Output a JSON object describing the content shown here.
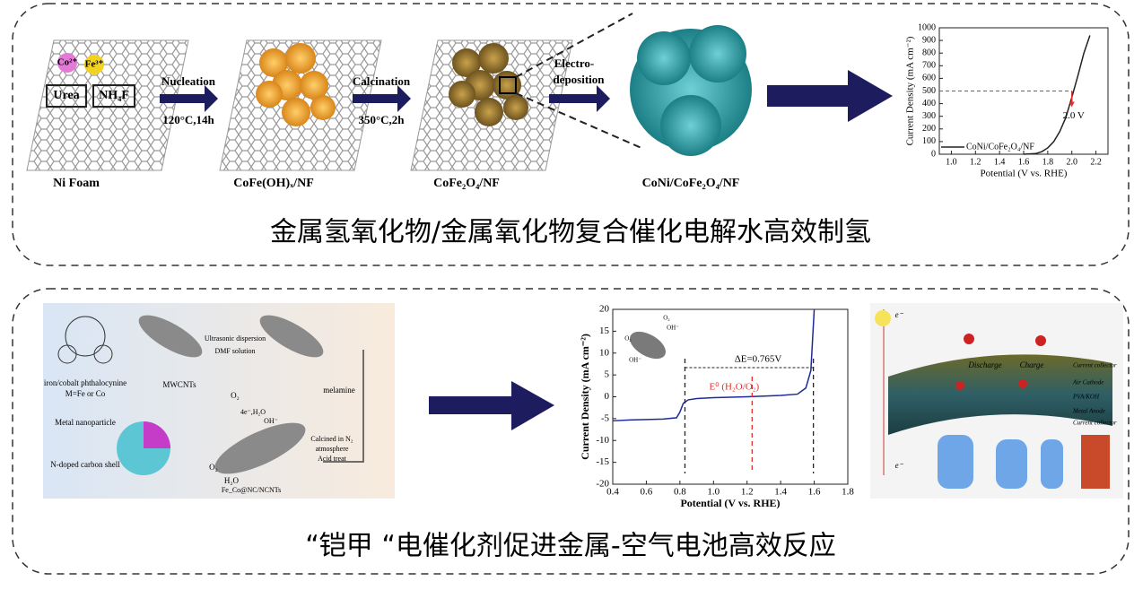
{
  "panels": [
    {
      "caption": "金属氢氧化物/金属氧化物复合催化电解水高效制氢",
      "scheme": {
        "labels": [
          "Co²⁺",
          "Fe³⁺",
          "Urea",
          "NH₄F",
          "Nucleation",
          "120°C,14h",
          "Calcination",
          "350°C,2h",
          "Electro-",
          "deposition"
        ],
        "stages": [
          "Ni Foam",
          "CoFe(OH)ₓ/NF",
          "CoFe₂O₄/NF",
          "CoNi/CoFe₂O₄/NF"
        ]
      }
    },
    {
      "caption": "“铠甲 “电催化剂促进金属-空气电池高效反应",
      "scheme": {
        "labels": [
          "iron/cobalt phthalocynine",
          "M=Fe or Co",
          "MWCNTs",
          "Ultrasonic dispersion",
          "DMF solution",
          "melamine",
          "Metal nanoparticle",
          "N-doped carbon shell",
          "Calcined in N₂",
          "atmosphere",
          "Acid treat",
          "Fe_Co@NC/NCNTs",
          "O₂",
          "4e⁻,H₂O",
          "OH⁻",
          "O₂",
          "H₂O"
        ],
        "battery": [
          "Discharge",
          "Charge",
          "Current collector",
          "Air Cathode",
          "PVA/KOH",
          "Metal Anode",
          "Current collector",
          "e⁻",
          "e⁻"
        ],
        "inset": [
          "O₂",
          "OH⁻",
          "O₂",
          "OH⁻"
        ]
      }
    }
  ],
  "chart_data": [
    {
      "type": "line",
      "xlabel": "Potential (V vs. RHE)",
      "ylabel": "Current Density (mA cm⁻²)",
      "xlim": [
        0.9,
        2.3
      ],
      "ylim": [
        0,
        1000
      ],
      "xticks": [
        {
          "value": 1,
          "label": "1.0"
        },
        1.2,
        1.4,
        1.6,
        1.8,
        {
          "value": 2,
          "label": "2.0"
        },
        2.2
      ],
      "yticks": [
        0,
        100,
        200,
        300,
        400,
        500,
        600,
        700,
        800,
        900,
        1000
      ],
      "series": [
        {
          "name": "CoNi/CoFe₂O₄/NF",
          "color": "#222222",
          "x": [
            1.6,
            1.7,
            1.75,
            1.8,
            1.85,
            1.9,
            1.95,
            2.0,
            2.05,
            2.1,
            2.15
          ],
          "values": [
            0,
            5,
            20,
            50,
            100,
            180,
            290,
            450,
            620,
            800,
            940
          ]
        }
      ],
      "reference_lines": [
        {
          "axis": "y",
          "value": 500,
          "color": "#e03030"
        },
        {
          "axis": "x",
          "value": 2,
          "color": "#e03030"
        }
      ],
      "annotations": [
        "2.0 V"
      ]
    },
    {
      "type": "line",
      "xlabel": "Potential (V vs. RHE)",
      "ylabel": "Current Density (mA cm⁻²)",
      "xlim": [
        0.4,
        1.8
      ],
      "ylim": [
        -20,
        20
      ],
      "xticks": [
        0.4,
        0.6,
        0.8,
        {
          "value": 1,
          "label": "1.0"
        },
        1.2,
        1.4,
        1.6,
        1.8
      ],
      "yticks": [
        -20,
        -15,
        -10,
        -5,
        0,
        5,
        10,
        15,
        20
      ],
      "series": [
        {
          "color": "#1f2a9a",
          "x": [
            0.4,
            0.5,
            0.6,
            0.7,
            0.78,
            0.8,
            0.82,
            0.85,
            0.9,
            1.0,
            1.2,
            1.4,
            1.5,
            1.55,
            1.58,
            1.6
          ],
          "values": [
            -5.5,
            -5.3,
            -5.2,
            -5.1,
            -4.8,
            -3.5,
            -1.5,
            -0.7,
            -0.4,
            -0.2,
            0,
            0.3,
            0.6,
            2,
            6,
            20
          ]
        }
      ],
      "reference_lines": [
        {
          "axis": "x",
          "value": 0.83,
          "color": "#222222"
        },
        {
          "axis": "x",
          "value": 1.23,
          "color": "#e03030"
        },
        {
          "axis": "x",
          "value": 1.595,
          "color": "#222222"
        }
      ],
      "annotations": [
        "ΔE=0.765V",
        "E⁰ (H₂O/O₂)"
      ]
    }
  ]
}
